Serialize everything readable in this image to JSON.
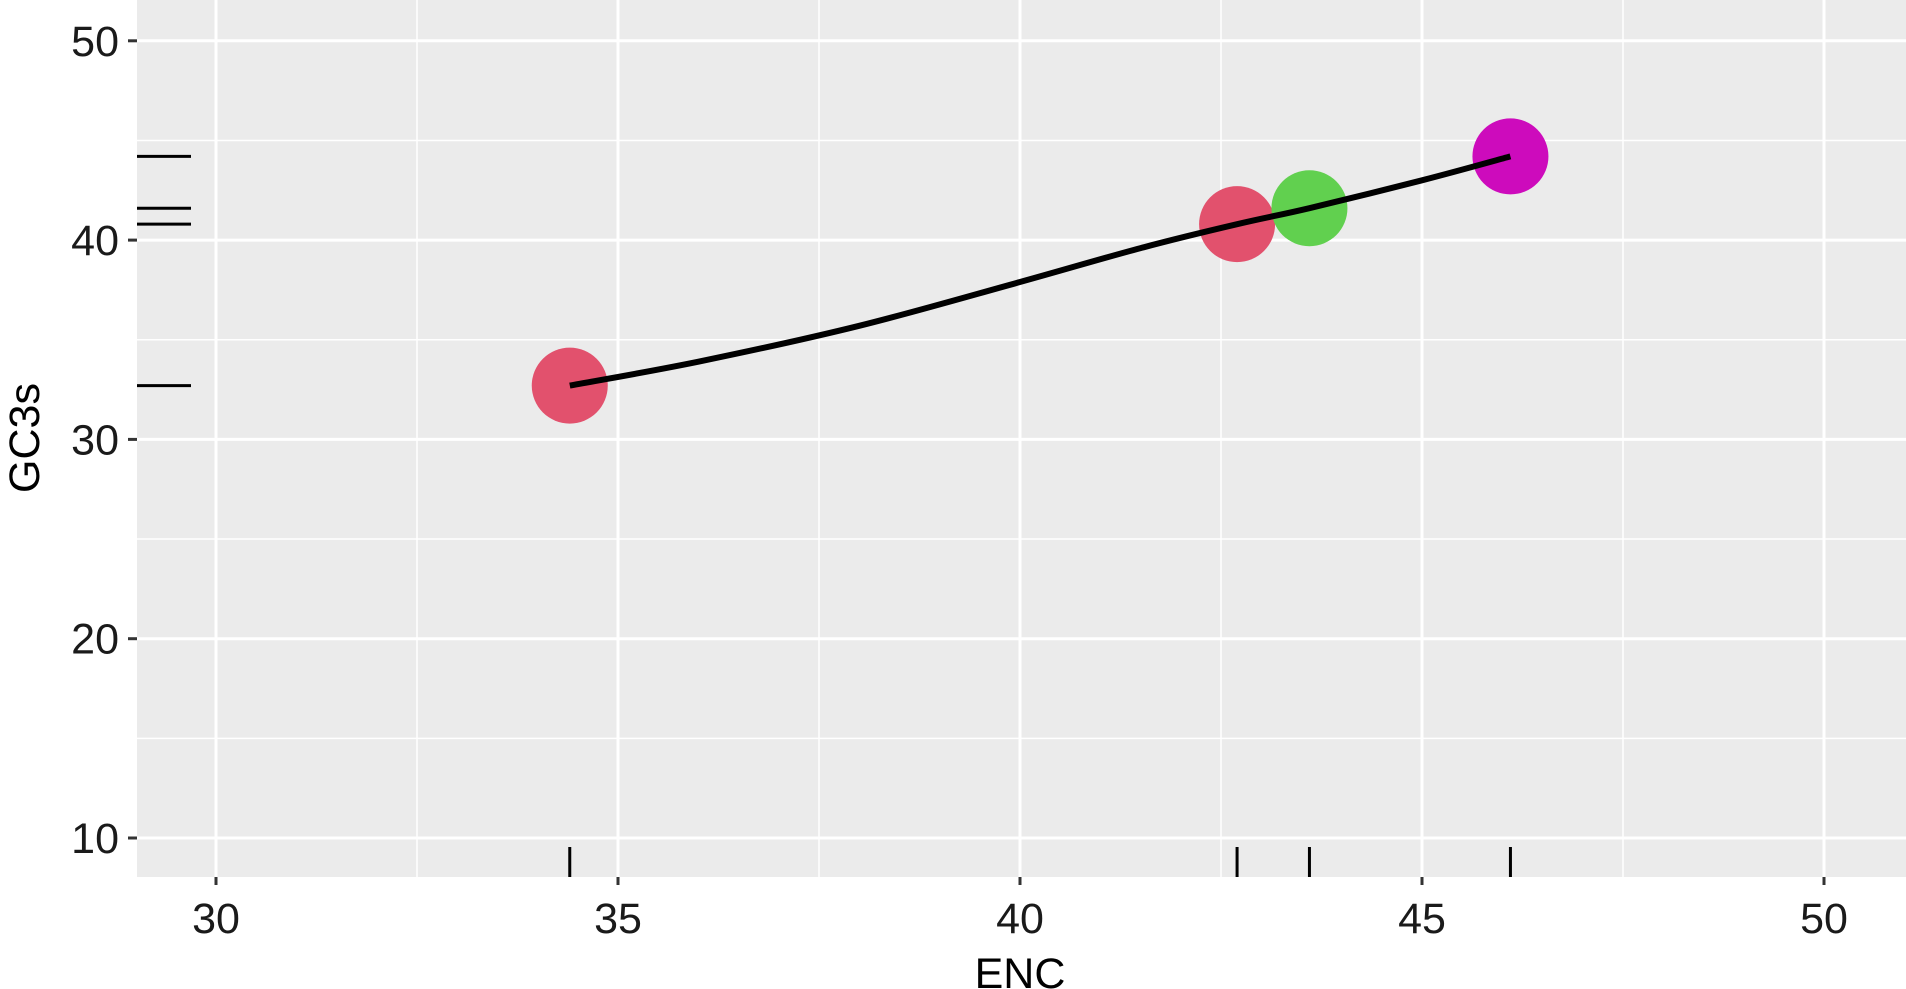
{
  "chart_data": {
    "type": "scatter",
    "xlabel": "ENC",
    "ylabel": "GC3s",
    "xlim": [
      29,
      51
    ],
    "ylim": [
      9,
      51
    ],
    "x_ticks": [
      30,
      35,
      40,
      45,
      50
    ],
    "y_ticks": [
      10,
      20,
      30,
      40,
      50
    ],
    "grid": true,
    "panel_background": "#EBEBEB",
    "points": [
      {
        "x": 34.4,
        "y": 32.7,
        "color": "#E2516D"
      },
      {
        "x": 42.7,
        "y": 40.8,
        "color": "#E2516D"
      },
      {
        "x": 43.6,
        "y": 41.6,
        "color": "#61D04F"
      },
      {
        "x": 46.1,
        "y": 44.2,
        "color": "#CD0BBC"
      }
    ],
    "smooth_line": [
      [
        34.4,
        32.7
      ],
      [
        36.0,
        33.9
      ],
      [
        38.0,
        35.7
      ],
      [
        40.0,
        37.9
      ],
      [
        41.5,
        39.6
      ],
      [
        42.7,
        40.8
      ],
      [
        43.6,
        41.6
      ],
      [
        45.0,
        43.0
      ],
      [
        46.1,
        44.2
      ]
    ],
    "rug": true,
    "legend": "none"
  }
}
